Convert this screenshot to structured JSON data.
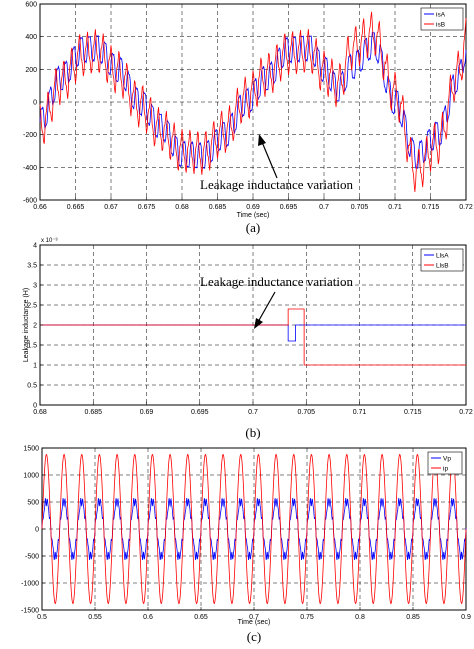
{
  "chart_data": [
    {
      "type": "line",
      "caption": "(a)",
      "xlabel": "Time (sec)",
      "ylabel": "",
      "xlim": [
        0.66,
        0.72
      ],
      "ylim": [
        -600,
        600
      ],
      "xticks": [
        "0.66",
        "0.665",
        "0.67",
        "0.675",
        "0.68",
        "0.685",
        "0.69",
        "0.695",
        "0.7",
        "0.705",
        "0.71",
        "0.715",
        "0.72"
      ],
      "yticks": [
        "600",
        "400",
        "200",
        "0",
        "-200",
        "-400",
        "-600"
      ],
      "grid": true,
      "legend_position": "top-right",
      "annotation": {
        "text": "Leakage inductance variation",
        "x": 0.702,
        "y": -100
      },
      "series": [
        {
          "name": "isA",
          "color": "#0000ff",
          "x": [
            0.66,
            0.663,
            0.666,
            0.668,
            0.671,
            0.674,
            0.677,
            0.68,
            0.683,
            0.686,
            0.689,
            0.692,
            0.695,
            0.698,
            0.7,
            0.702,
            0.704,
            0.707,
            0.71,
            0.713,
            0.716,
            0.719,
            0.72
          ],
          "values": [
            -120,
            150,
            320,
            330,
            200,
            0,
            -150,
            -320,
            -330,
            -200,
            0,
            150,
            320,
            330,
            200,
            80,
            220,
            350,
            0,
            -330,
            -200,
            150,
            320
          ]
        },
        {
          "name": "isB",
          "color": "#ff0000",
          "x": [
            0.66,
            0.663,
            0.666,
            0.668,
            0.671,
            0.674,
            0.677,
            0.68,
            0.683,
            0.686,
            0.689,
            0.692,
            0.695,
            0.698,
            0.7,
            0.702,
            0.704,
            0.707,
            0.71,
            0.713,
            0.716,
            0.719,
            0.72
          ],
          "values": [
            -150,
            120,
            290,
            310,
            180,
            -20,
            -170,
            -300,
            -310,
            -180,
            20,
            170,
            300,
            310,
            180,
            100,
            330,
            420,
            50,
            -420,
            -250,
            180,
            380
          ]
        }
      ]
    },
    {
      "type": "line",
      "caption": "(b)",
      "xlabel": "",
      "ylabel": "Leakage inductance (H)",
      "xlim": [
        0.68,
        0.72
      ],
      "ylim": [
        0,
        4
      ],
      "y_exponent": "x 10⁻³",
      "xticks": [
        "0.68",
        "0.685",
        "0.69",
        "0.695",
        "0.7",
        "0.705",
        "0.71",
        "0.715",
        "0.72"
      ],
      "yticks": [
        "4",
        "3.5",
        "3",
        "2.5",
        "2",
        "1.5",
        "1",
        "0.5",
        "0"
      ],
      "grid": true,
      "legend_position": "top-right",
      "annotation": {
        "text": "Leakage inductance variation",
        "x": 0.7,
        "y": 2.0
      },
      "series": [
        {
          "name": "LlsA",
          "color": "#0000ff",
          "x": [
            0.68,
            0.7033,
            0.7033,
            0.704,
            0.704,
            0.72
          ],
          "values": [
            2.0,
            2.0,
            1.6,
            1.6,
            2.0,
            2.0
          ]
        },
        {
          "name": "LlsB",
          "color": "#ff0000",
          "x": [
            0.68,
            0.7033,
            0.7033,
            0.7048,
            0.7048,
            0.72
          ],
          "values": [
            2.0,
            2.0,
            2.4,
            2.4,
            1.0,
            1.0
          ]
        }
      ]
    },
    {
      "type": "line",
      "caption": "(c)",
      "xlabel": "Time (sec)",
      "ylabel": "",
      "xlim": [
        0.5,
        0.9
      ],
      "ylim": [
        -1500,
        1500
      ],
      "xticks": [
        "0.5",
        "0.55",
        "0.6",
        "0.65",
        "0.7",
        "0.75",
        "0.8",
        "0.85",
        "0.9"
      ],
      "yticks": [
        "1500",
        "1000",
        "500",
        "0",
        "-500",
        "-1000",
        "-1500"
      ],
      "grid": true,
      "legend_position": "top-right",
      "series": [
        {
          "name": "Vp",
          "color": "#0000ff",
          "amplitude": 520,
          "frequency_hz": 60
        },
        {
          "name": "ip",
          "color": "#ff0000",
          "amplitude": 1380,
          "frequency_hz": 60
        }
      ]
    }
  ]
}
